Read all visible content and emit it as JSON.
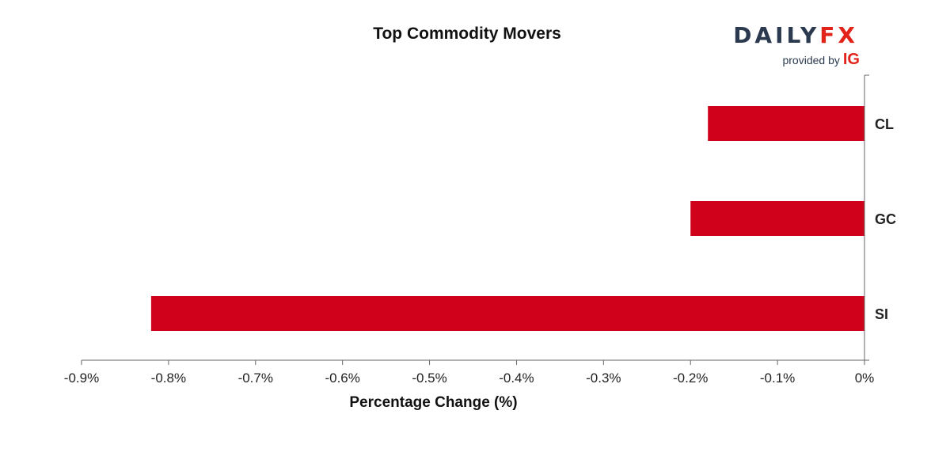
{
  "header": {
    "title": "Top Commodity Movers"
  },
  "branding": {
    "logo_daily": "DAILY",
    "logo_fx": "FX",
    "provided_by": "provided by",
    "ig": "IG",
    "colors": {
      "navy": "#2b3a4f",
      "red": "#e2231a"
    }
  },
  "chart_data": {
    "type": "bar",
    "orientation": "horizontal",
    "title": "Top Commodity Movers",
    "xlabel": "Percentage Change (%)",
    "ylabel": "",
    "categories": [
      "CL",
      "GC",
      "SI"
    ],
    "values": [
      -0.18,
      -0.2,
      -0.82
    ],
    "xlim": [
      -0.9,
      0
    ],
    "xticks": [
      -0.9,
      -0.8,
      -0.7,
      -0.6,
      -0.5,
      -0.4,
      -0.3,
      -0.2,
      -0.1,
      0
    ],
    "xtick_labels": [
      "-0.9%",
      "-0.8%",
      "-0.7%",
      "-0.6%",
      "-0.5%",
      "-0.4%",
      "-0.3%",
      "-0.2%",
      "-0.1%",
      "0%"
    ],
    "category_axis_position": "right",
    "grid": false,
    "legend": "none",
    "bar_color": "#d0021b",
    "axis_color": "#666666"
  }
}
